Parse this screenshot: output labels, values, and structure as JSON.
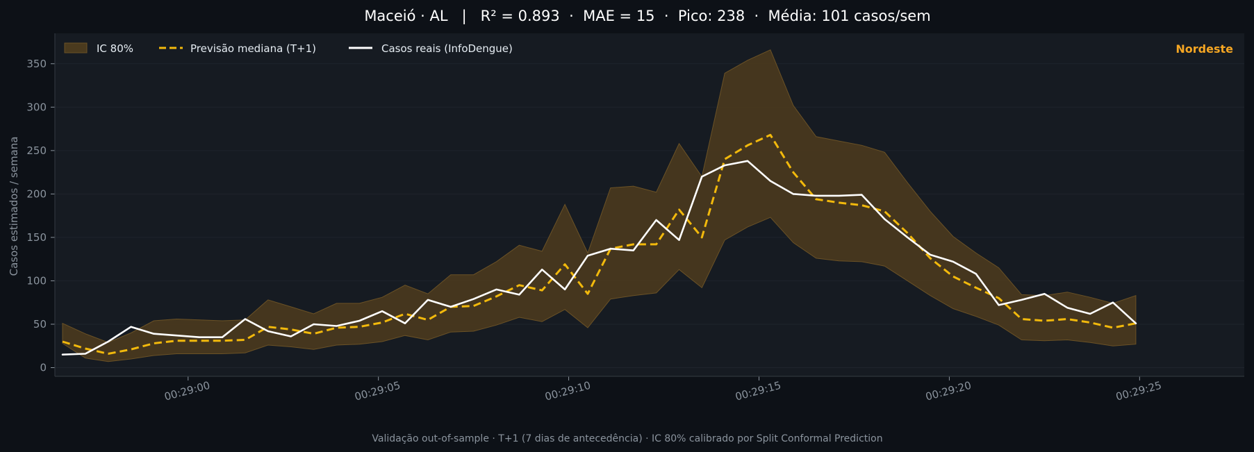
{
  "chart_data": {
    "type": "line",
    "title": "Maceió · AL   |   R² = 0.893  ·  MAE = 15  ·  Pico: 238  ·  Média: 101 casos/sem",
    "ylabel": "Casos estimados / semana",
    "xlabel": "",
    "footer": "Validação out-of-sample · T+1 (7 dias de antecedência) · IC 80% calibrado por Split Conformal Prediction",
    "region_label": "Nordeste",
    "ylim": [
      -10,
      385
    ],
    "xlim": [
      -7,
      55.5
    ],
    "y_ticks": [
      0,
      50,
      100,
      150,
      200,
      250,
      300,
      350
    ],
    "x_ticks": [
      {
        "value": 0,
        "label": "00:29:00"
      },
      {
        "value": 10,
        "label": "00:29:05"
      },
      {
        "value": 20,
        "label": "00:29:10"
      },
      {
        "value": 30,
        "label": "00:29:15"
      },
      {
        "value": 40,
        "label": "00:29:20"
      },
      {
        "value": 50,
        "label": "00:29:25"
      }
    ],
    "grid": true,
    "legend_position": "top-left",
    "x": [
      -6.6,
      -5.4,
      -4.2,
      -3.0,
      -1.8,
      -0.6,
      0.6,
      1.8,
      3.0,
      4.2,
      5.4,
      6.6,
      7.8,
      9.0,
      10.2,
      11.4,
      12.6,
      13.8,
      15.0,
      16.2,
      17.4,
      18.6,
      19.8,
      21.0,
      22.2,
      23.4,
      24.6,
      25.8,
      27.0,
      28.2,
      29.4,
      30.6,
      31.8,
      33.0,
      34.2,
      35.4,
      36.6,
      37.8,
      39.0,
      40.2,
      41.4,
      42.6,
      43.8,
      45.0,
      46.2,
      47.4,
      48.6,
      49.8
    ],
    "series": [
      {
        "name": "IC 80%",
        "kind": "band",
        "color": "#4a3a1e",
        "edge": "#6b5226",
        "lower": [
          28,
          11,
          7,
          10,
          14,
          16,
          16,
          16,
          17,
          26,
          24,
          21,
          26,
          27,
          30,
          37,
          32,
          41,
          42,
          49,
          58,
          53,
          67,
          46,
          79,
          83,
          86,
          113,
          92,
          147,
          162,
          173,
          144,
          126,
          123,
          122,
          117,
          100,
          83,
          68,
          59,
          49,
          32,
          31,
          32,
          29,
          25,
          27
        ],
        "upper": [
          51,
          39,
          29,
          40,
          54,
          56,
          55,
          54,
          55,
          78,
          70,
          62,
          74,
          74,
          81,
          95,
          85,
          107,
          107,
          122,
          141,
          134,
          188,
          132,
          207,
          209,
          202,
          258,
          220,
          339,
          354,
          366,
          302,
          266,
          261,
          256,
          248,
          213,
          180,
          151,
          132,
          115,
          84,
          83,
          87,
          81,
          74,
          83
        ]
      },
      {
        "name": "Previsão mediana (T+1)",
        "kind": "dashed",
        "color": "#f2b90c",
        "values": [
          30,
          22,
          16,
          21,
          28,
          31,
          31,
          31,
          32,
          47,
          44,
          39,
          46,
          47,
          52,
          62,
          55,
          70,
          71,
          82,
          95,
          89,
          119,
          85,
          137,
          142,
          142,
          182,
          150,
          240,
          256,
          268,
          225,
          194,
          190,
          187,
          180,
          155,
          126,
          105,
          92,
          80,
          56,
          54,
          56,
          52,
          46,
          51
        ]
      },
      {
        "name": "Casos reais (InfoDengue)",
        "kind": "solid",
        "color": "#ffffff",
        "values": [
          15,
          16,
          30,
          47,
          39,
          37,
          35,
          35,
          56,
          42,
          36,
          50,
          48,
          54,
          65,
          51,
          78,
          70,
          79,
          90,
          84,
          113,
          90,
          129,
          137,
          135,
          170,
          147,
          220,
          233,
          238,
          215,
          200,
          198,
          198,
          199,
          171,
          150,
          130,
          122,
          108,
          72,
          78,
          85,
          69,
          62,
          75,
          51
        ]
      }
    ]
  },
  "colors": {
    "background": "#0d1117",
    "plot_background": "#161b22",
    "axis": "#30363d",
    "grid": "#1f242c",
    "region": "#f5a623"
  }
}
